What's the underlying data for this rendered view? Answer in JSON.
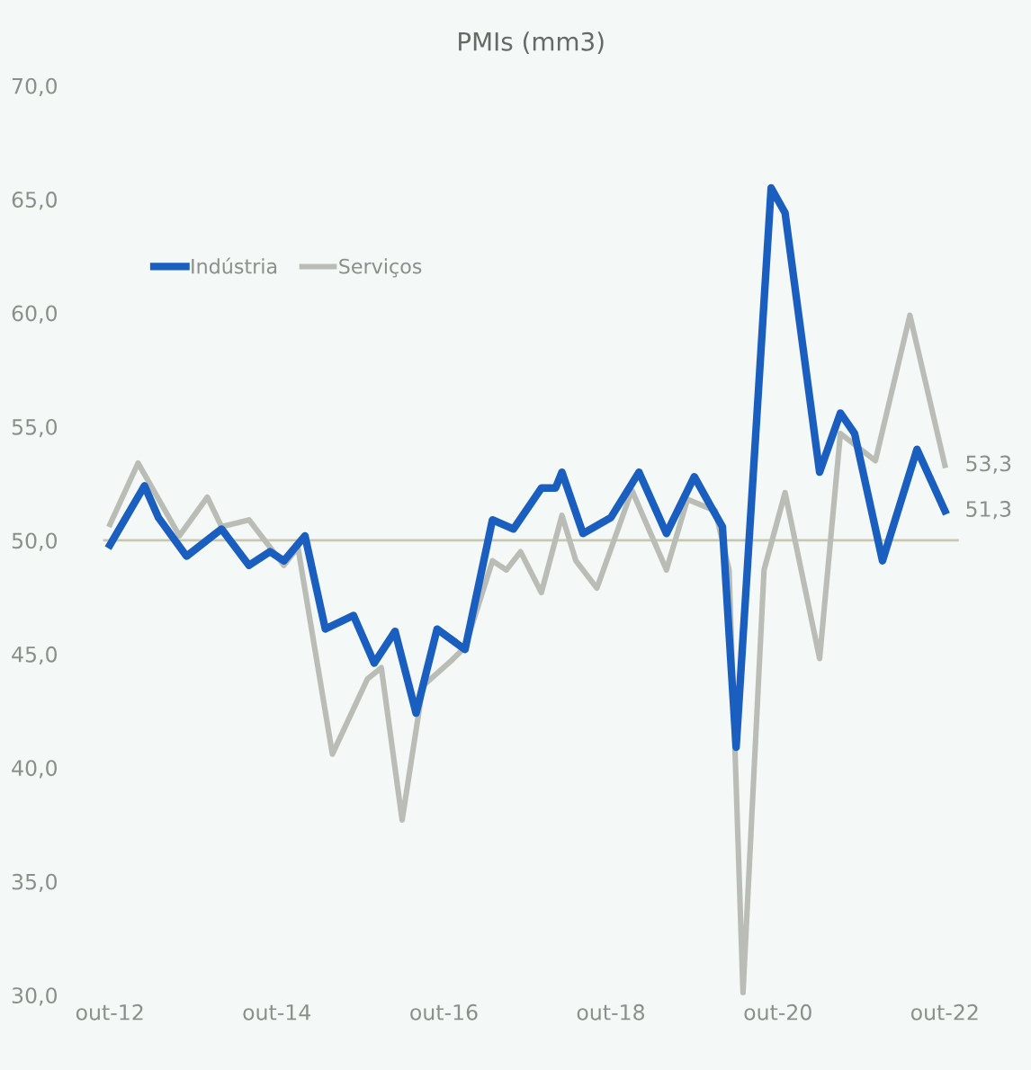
{
  "chart_data": {
    "type": "line",
    "title": "PMIs (mm3)",
    "series": [
      {
        "name": "Indústria",
        "color": "#1a5fc0",
        "x": [
          "2012-10",
          "2013-03",
          "2013-05",
          "2013-09",
          "2014-02",
          "2014-06",
          "2014-09",
          "2014-11",
          "2015-02",
          "2015-05",
          "2015-09",
          "2015-12",
          "2016-03",
          "2016-06",
          "2016-09",
          "2017-01",
          "2017-05",
          "2017-08",
          "2017-12",
          "2018-02",
          "2018-03",
          "2018-06",
          "2018-10",
          "2019-02",
          "2019-06",
          "2019-10",
          "2019-12",
          "2020-02",
          "2020-04",
          "2020-09",
          "2020-11",
          "2021-04",
          "2021-07",
          "2021-09",
          "2022-01",
          "2022-06",
          "2022-10"
        ],
        "values": [
          49.8,
          52.4,
          51.0,
          49.3,
          50.5,
          48.9,
          49.5,
          49.1,
          50.2,
          46.1,
          46.7,
          44.6,
          46.0,
          42.4,
          46.1,
          45.2,
          50.9,
          50.5,
          52.3,
          52.3,
          53.0,
          50.3,
          51.0,
          53.0,
          50.3,
          52.8,
          51.7,
          50.6,
          40.9,
          65.5,
          64.4,
          53.0,
          55.6,
          54.7,
          49.1,
          54.0,
          51.3
        ]
      },
      {
        "name": "Serviços",
        "color": "#b9bdb6",
        "x": [
          "2012-10",
          "2013-02",
          "2013-08",
          "2013-12",
          "2014-02",
          "2014-06",
          "2014-11",
          "2015-01",
          "2015-06",
          "2015-11",
          "2016-01",
          "2016-04",
          "2016-07",
          "2016-11",
          "2017-01",
          "2017-05",
          "2017-07",
          "2017-09",
          "2017-12",
          "2018-03",
          "2018-05",
          "2018-08",
          "2019-01",
          "2019-06",
          "2019-09",
          "2020-01",
          "2020-03",
          "2020-05",
          "2020-08",
          "2020-11",
          "2021-04",
          "2021-07",
          "2021-12",
          "2022-05",
          "2022-10"
        ],
        "values": [
          50.7,
          53.4,
          50.2,
          51.9,
          50.6,
          50.9,
          48.9,
          49.7,
          40.6,
          43.9,
          44.4,
          37.7,
          43.6,
          44.7,
          45.3,
          49.1,
          48.7,
          49.5,
          47.7,
          51.1,
          49.1,
          47.9,
          52.2,
          48.7,
          51.8,
          51.3,
          48.7,
          30.1,
          48.7,
          52.1,
          44.8,
          54.7,
          53.5,
          59.9,
          53.3
        ]
      }
    ],
    "ylim": [
      30,
      70
    ],
    "yticks": [
      {
        "value": 30,
        "label": "30,0"
      },
      {
        "value": 35,
        "label": "35,0"
      },
      {
        "value": 40,
        "label": "40,0"
      },
      {
        "value": 45,
        "label": "45,0"
      },
      {
        "value": 50,
        "label": "50,0"
      },
      {
        "value": 55,
        "label": "55,0"
      },
      {
        "value": 60,
        "label": "60,0"
      },
      {
        "value": 65,
        "label": "65,0"
      },
      {
        "value": 70,
        "label": "70,0"
      }
    ],
    "xlim": [
      "2012-09",
      "2022-12"
    ],
    "xticks": [
      {
        "value": "2012-10",
        "label": "out-12"
      },
      {
        "value": "2014-10",
        "label": "out-14"
      },
      {
        "value": "2016-10",
        "label": "out-16"
      },
      {
        "value": "2018-10",
        "label": "out-18"
      },
      {
        "value": "2020-10",
        "label": "out-20"
      },
      {
        "value": "2022-10",
        "label": "out-22"
      }
    ],
    "ref_lines": [
      {
        "axis": "y",
        "value": 50,
        "label": null,
        "color": "#c8c8b0"
      }
    ],
    "annotations": [
      {
        "text": "53,3",
        "x": "2022-10",
        "y": 53.3
      },
      {
        "text": "51,3",
        "x": "2022-10",
        "y": 51.3
      }
    ],
    "legend": "top left",
    "grid": false,
    "line_style": "solid",
    "marker": "none"
  }
}
